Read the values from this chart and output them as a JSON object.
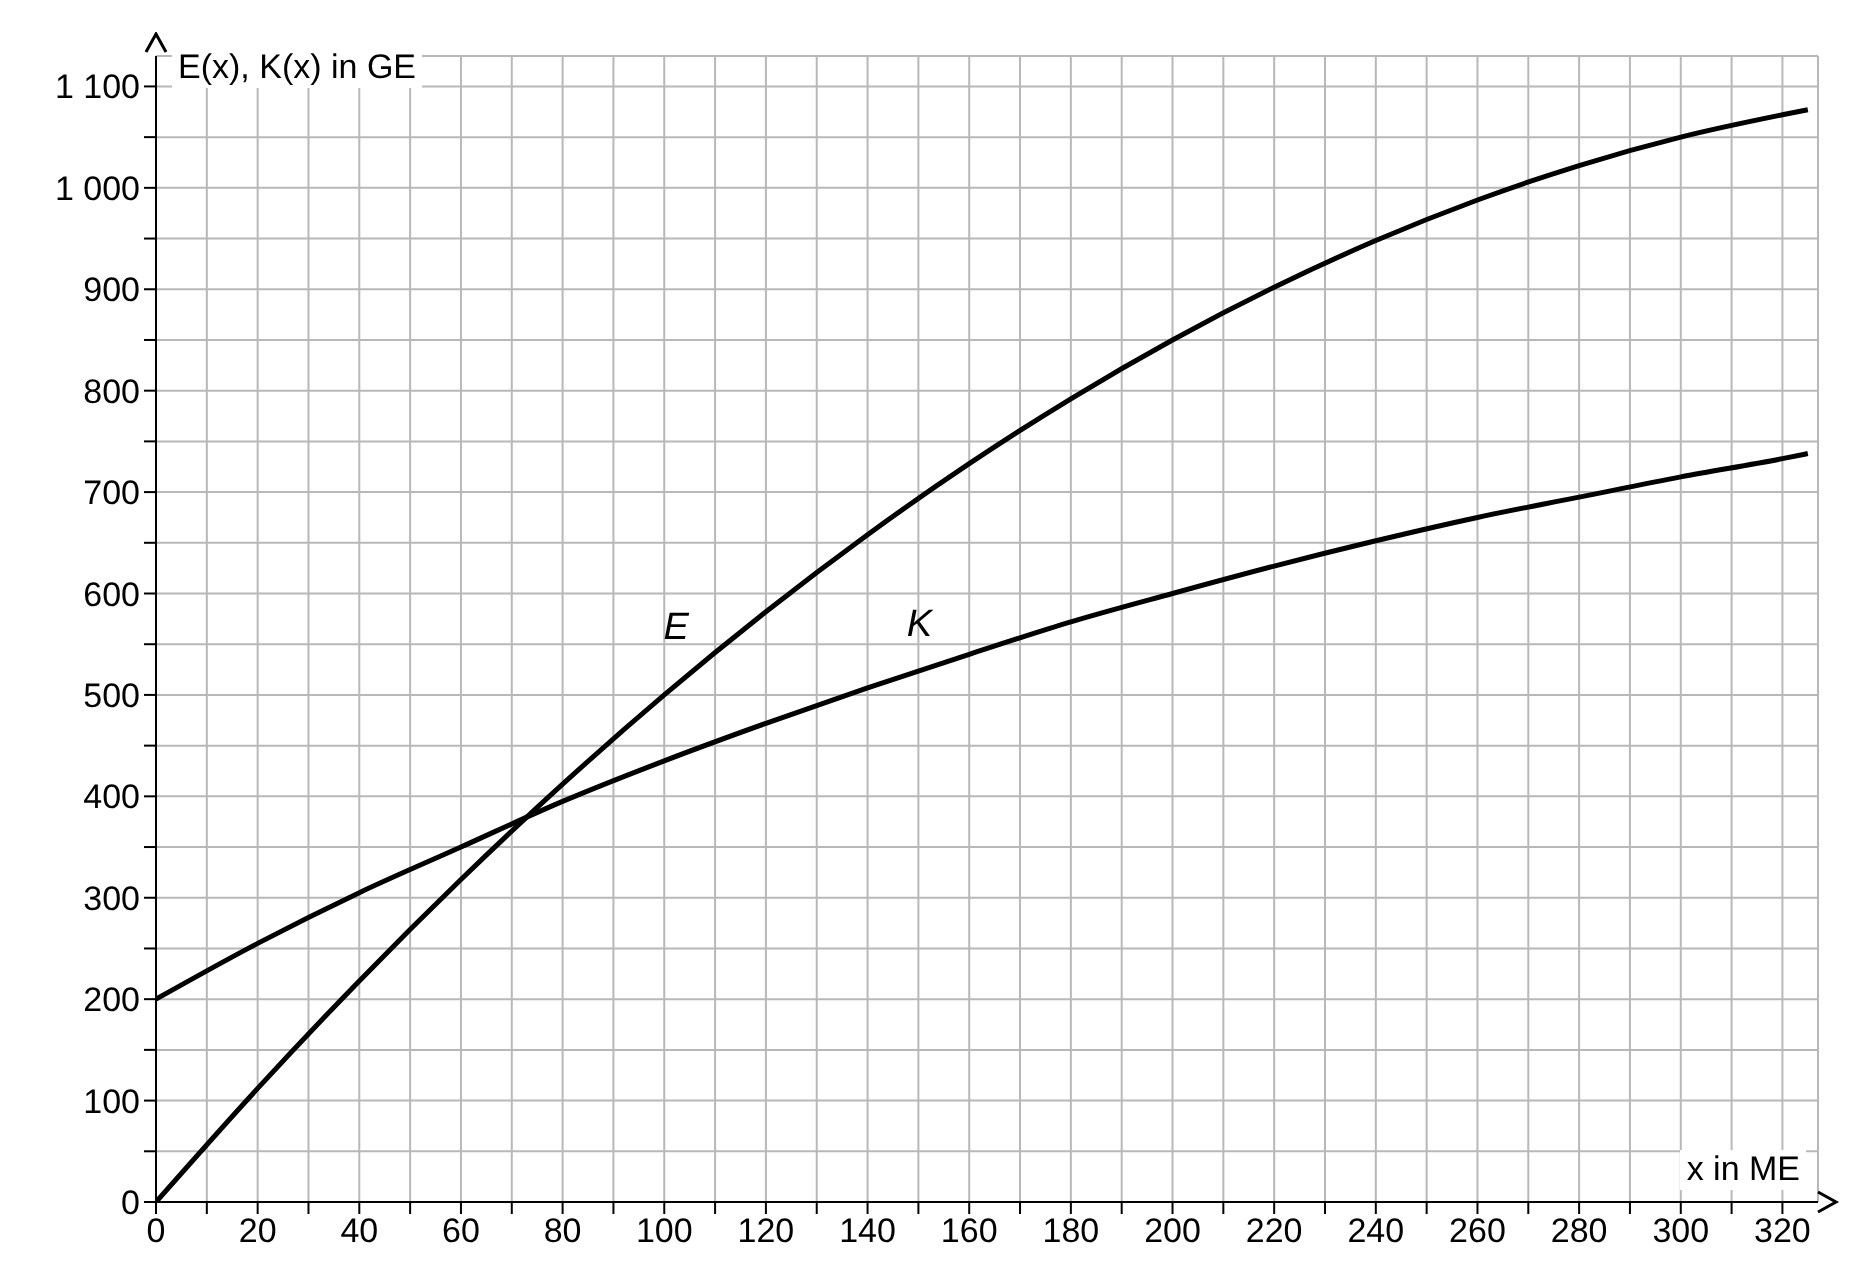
{
  "chart_data": {
    "type": "line",
    "xlabel": "x in ME",
    "ylabel": "E(x), K(x) in GE",
    "x": [
      0,
      20,
      40,
      60,
      80,
      100,
      120,
      140,
      160,
      180,
      200,
      220,
      240,
      260,
      280,
      300,
      320,
      325
    ],
    "series": [
      {
        "name": "E",
        "color": "#000000",
        "values": [
          0,
          112,
          218,
          318,
          412,
          500,
          582,
          658,
          728,
          792,
          850,
          902,
          948,
          988,
          1022,
          1050,
          1072,
          1077
        ]
      },
      {
        "name": "K",
        "color": "#000000",
        "values": [
          200,
          255,
          305,
          350,
          395,
          435,
          472,
          507,
          540,
          572,
          600,
          627,
          652,
          675,
          695,
          715,
          733,
          738
        ]
      }
    ],
    "xlim": [
      0,
      327
    ],
    "xticks": [
      0,
      {
        "value": 10,
        "label": null
      },
      20,
      {
        "value": 30,
        "label": null
      },
      40,
      {
        "value": 50,
        "label": null
      },
      60,
      {
        "value": 70,
        "label": null
      },
      80,
      {
        "value": 90,
        "label": null
      },
      100,
      {
        "value": 110,
        "label": null
      },
      120,
      {
        "value": 130,
        "label": null
      },
      140,
      {
        "value": 150,
        "label": null
      },
      160,
      {
        "value": 170,
        "label": null
      },
      180,
      {
        "value": 190,
        "label": null
      },
      200,
      {
        "value": 210,
        "label": null
      },
      220,
      {
        "value": 230,
        "label": null
      },
      240,
      {
        "value": 250,
        "label": null
      },
      260,
      {
        "value": 270,
        "label": null
      },
      280,
      {
        "value": 290,
        "label": null
      },
      300,
      {
        "value": 310,
        "label": null
      },
      320
    ],
    "ylim": [
      0,
      1130
    ],
    "yticks": [
      0,
      {
        "value": 50,
        "label": null
      },
      100,
      {
        "value": 150,
        "label": null
      },
      200,
      {
        "value": 250,
        "label": null
      },
      300,
      {
        "value": 350,
        "label": null
      },
      400,
      {
        "value": 450,
        "label": null
      },
      500,
      {
        "value": 550,
        "label": null
      },
      600,
      {
        "value": 650,
        "label": null
      },
      700,
      {
        "value": 750,
        "label": null
      },
      800,
      {
        "value": 850,
        "label": null
      },
      900,
      {
        "value": 950,
        "label": null
      },
      {
        "value": 1000,
        "label": "1 000"
      },
      {
        "value": 1050,
        "label": null
      },
      {
        "value": 1100,
        "label": "1 100"
      }
    ],
    "grid": true
  }
}
